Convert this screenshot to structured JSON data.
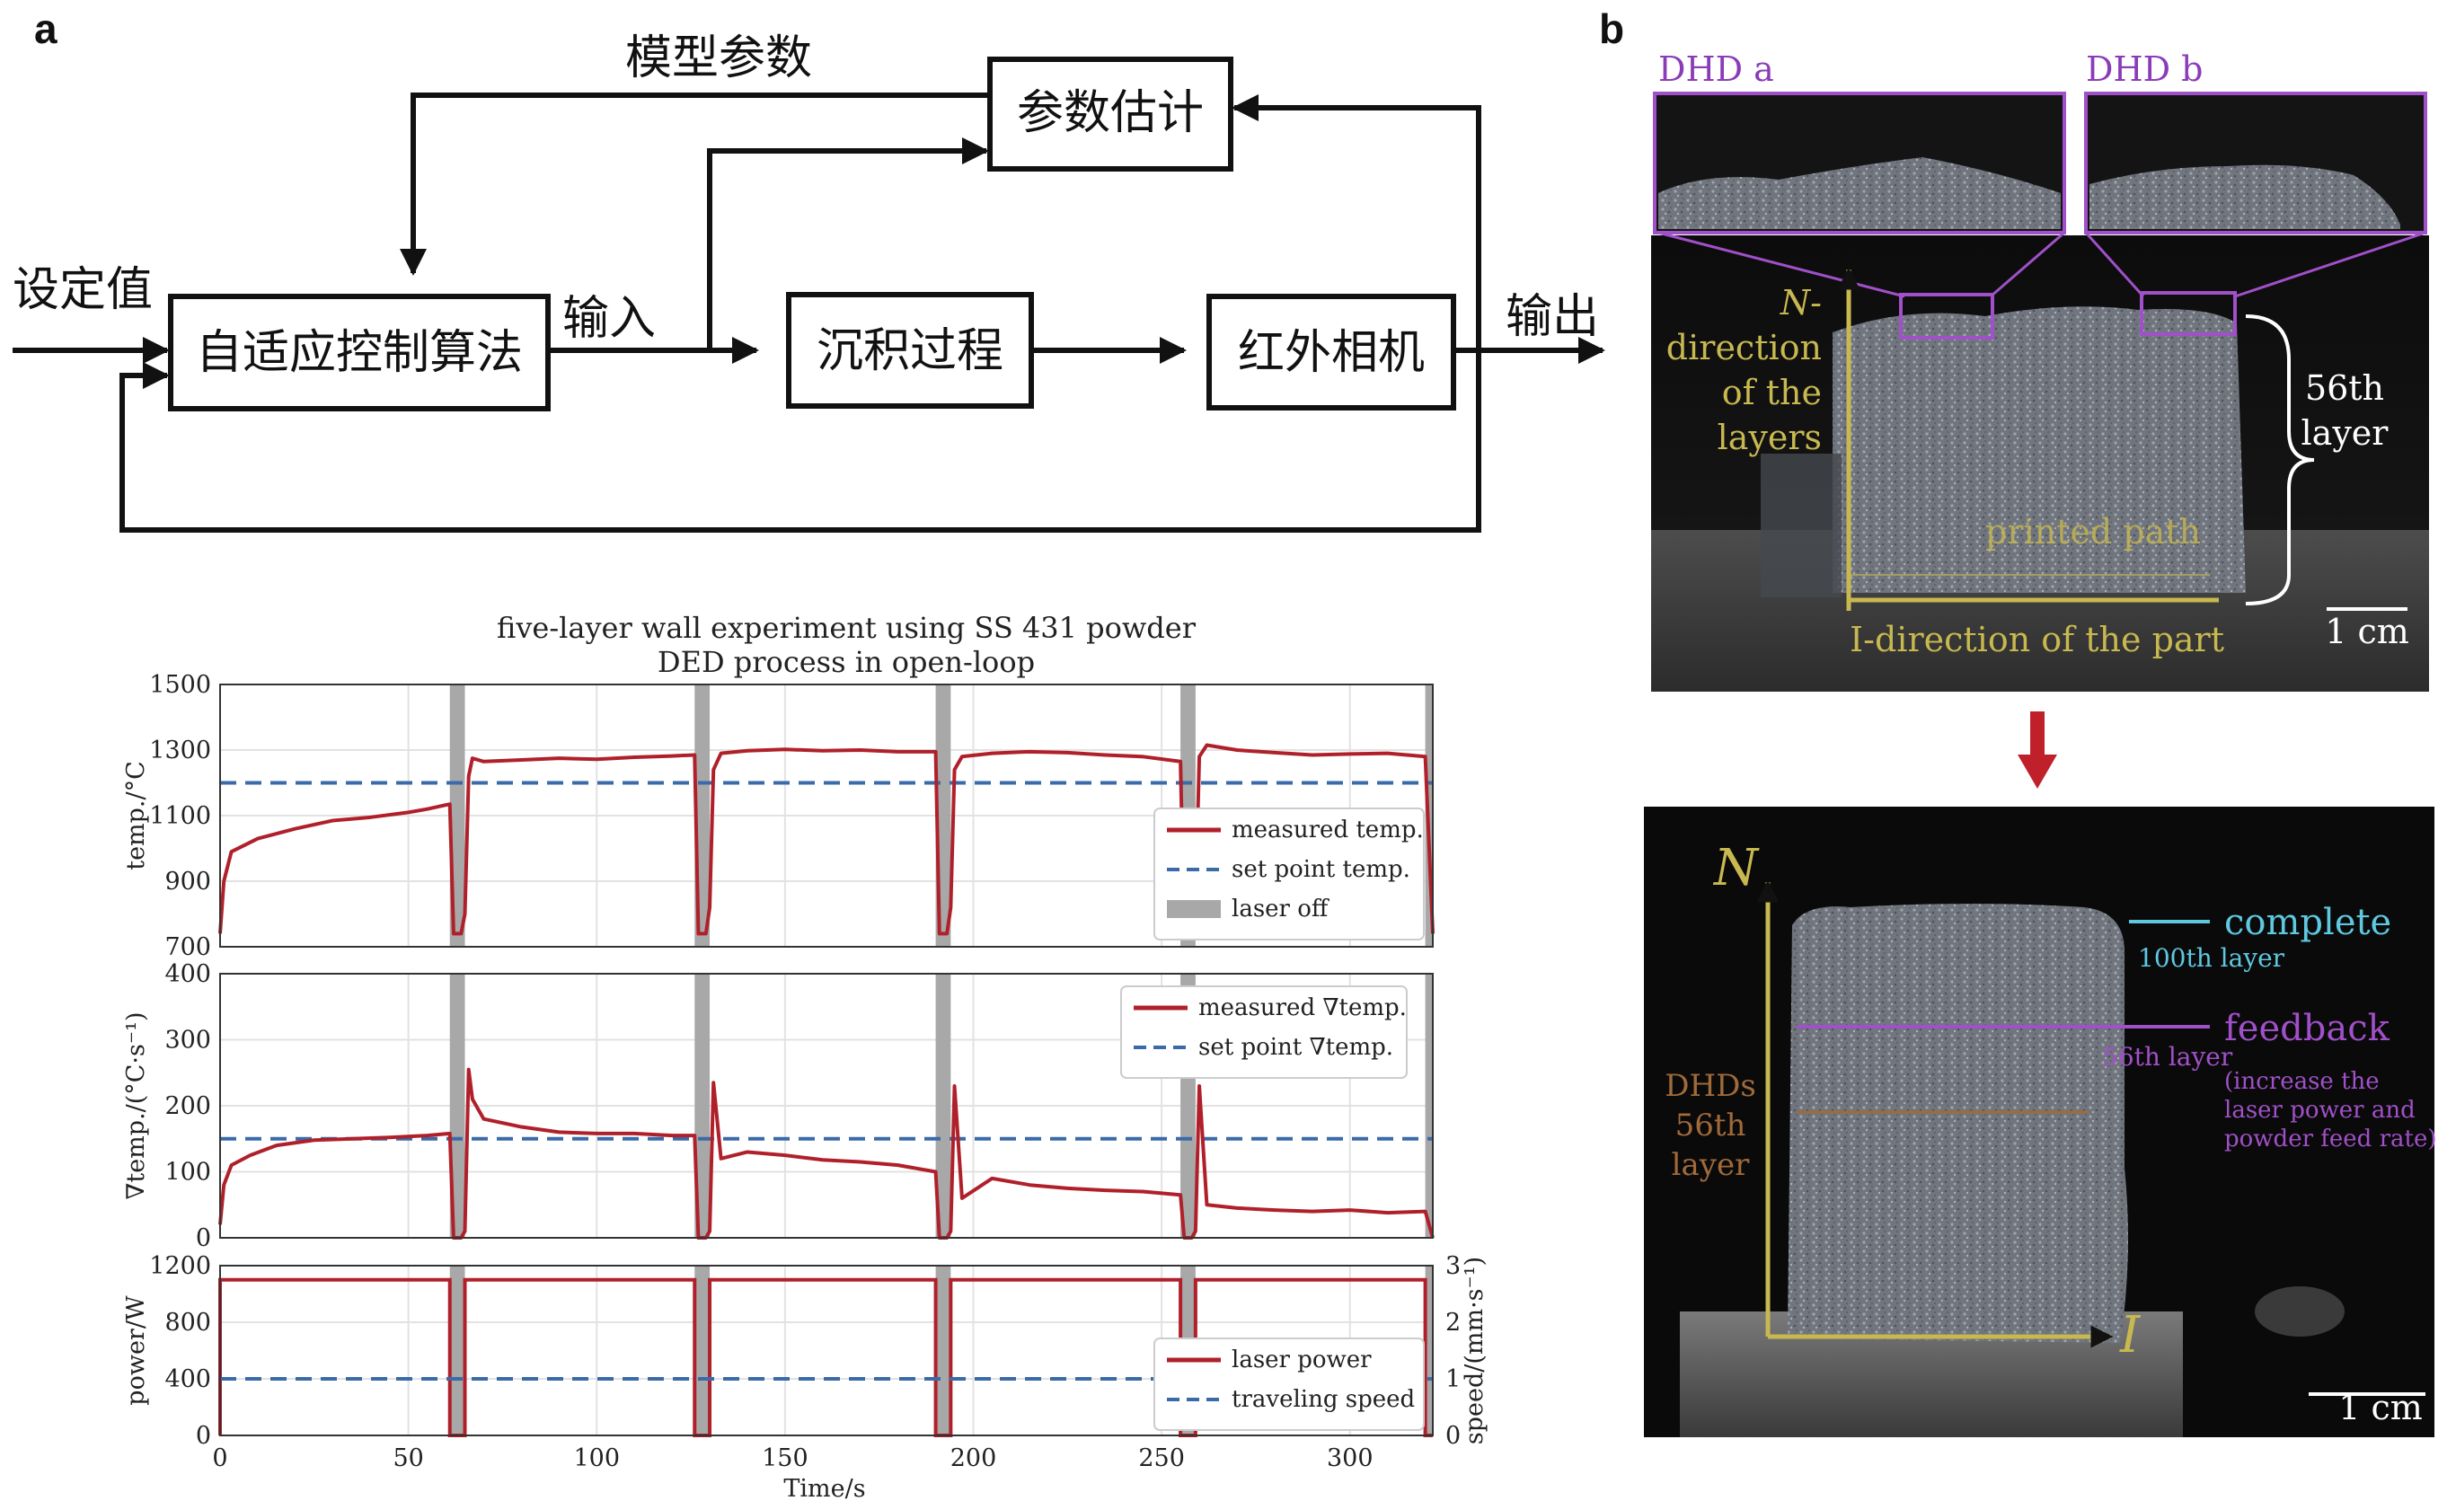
{
  "panel_a": {
    "letter": "a",
    "diagram": {
      "setpoint": "设定值",
      "adaptive_control": "自适应控制算法",
      "input": "输入",
      "deposition": "沉积过程",
      "ir_camera": "红外相机",
      "output": "输出",
      "param_estimation": "参数估计",
      "model_params": "模型参数"
    }
  },
  "panel_b": {
    "letter": "b",
    "photo_top": {
      "dhd_a": "DHD a",
      "dhd_b": "DHD b",
      "n_dir_1": "N-",
      "n_dir_2": "direction",
      "n_dir_3": "of the",
      "n_dir_4": "layers",
      "layer_56_1": "56th",
      "layer_56_2": "layer",
      "printed_path": "printed path",
      "i_dir": "I-direction of the part",
      "scale": "1 cm"
    },
    "photo_bottom": {
      "n_axis": "N",
      "i_axis": "I",
      "complete": "complete",
      "layer_100": "100th layer",
      "feedback": "feedback",
      "layer_56": "56th layer",
      "feedback_note_1": "(increase the",
      "feedback_note_2": "laser power and",
      "feedback_note_3": "powder feed rate)",
      "dhds_1": "DHDs",
      "dhds_2": "56th",
      "dhds_3": "layer",
      "scale": "1 cm"
    },
    "colors": {
      "arrow": "#c0202a",
      "purple": "#a050c8",
      "cyan": "#5ec8e0",
      "yellow": "#c8b850",
      "brown": "#a06a3a"
    }
  },
  "chart_data": {
    "type": "line",
    "title_line1": "five-layer wall experiment using SS 431 powder",
    "title_line2": "DED process in open-loop",
    "xlabel": "Time/s",
    "xlim": [
      0,
      322
    ],
    "x_ticks": [
      "0",
      "50",
      "100",
      "150",
      "200",
      "250",
      "300"
    ],
    "laser_off_intervals": [
      [
        61,
        65
      ],
      [
        126,
        130
      ],
      [
        190,
        194
      ],
      [
        255,
        259
      ],
      [
        320,
        322
      ]
    ],
    "colors": {
      "measured": "#b0202a",
      "setpoint": "#3a6aa8",
      "laser_off": "#a8a8a8"
    },
    "panels": [
      {
        "ylabel": "temp./°C",
        "ylim": [
          700,
          1500
        ],
        "y_ticks": [
          "700",
          "900",
          "1100",
          "1300",
          "1500"
        ],
        "setpoint_value": 1200,
        "legend": [
          "measured temp.",
          "set point temp.",
          "laser off"
        ],
        "measured_x": [
          0,
          1,
          3,
          10,
          20,
          30,
          40,
          50,
          55,
          61,
          62,
          64,
          65,
          66,
          67,
          70,
          80,
          90,
          100,
          110,
          120,
          126,
          127,
          129,
          130,
          131,
          133,
          140,
          150,
          160,
          170,
          180,
          190,
          191,
          193,
          194,
          195,
          197,
          205,
          215,
          225,
          235,
          245,
          255,
          256,
          258,
          259,
          260,
          262,
          270,
          280,
          290,
          300,
          310,
          320,
          322
        ],
        "measured_y": [
          740,
          900,
          990,
          1030,
          1060,
          1085,
          1095,
          1110,
          1120,
          1135,
          740,
          740,
          800,
          1220,
          1275,
          1265,
          1270,
          1275,
          1272,
          1278,
          1282,
          1285,
          740,
          740,
          820,
          1240,
          1290,
          1298,
          1302,
          1298,
          1300,
          1295,
          1295,
          740,
          740,
          820,
          1240,
          1280,
          1290,
          1295,
          1292,
          1285,
          1280,
          1265,
          740,
          740,
          820,
          1280,
          1315,
          1300,
          1292,
          1285,
          1288,
          1290,
          1280,
          740
        ]
      },
      {
        "ylabel": "∇temp./(°C·s⁻¹)",
        "ylim": [
          0,
          400
        ],
        "y_ticks": [
          "0",
          "100",
          "200",
          "300",
          "400"
        ],
        "setpoint_value": 150,
        "legend": [
          "measured ∇temp.",
          "set point ∇temp."
        ],
        "measured_x": [
          0,
          1,
          3,
          8,
          15,
          25,
          35,
          45,
          55,
          61,
          62,
          64,
          65,
          66,
          67,
          70,
          80,
          90,
          100,
          110,
          120,
          126,
          127,
          129,
          130,
          131,
          133,
          140,
          150,
          160,
          170,
          180,
          190,
          191,
          193,
          194,
          195,
          197,
          205,
          215,
          225,
          235,
          245,
          255,
          256,
          258,
          259,
          260,
          262,
          270,
          280,
          290,
          300,
          310,
          320,
          322
        ],
        "measured_y": [
          20,
          80,
          110,
          125,
          140,
          148,
          150,
          152,
          155,
          158,
          0,
          0,
          10,
          255,
          210,
          180,
          168,
          160,
          158,
          158,
          155,
          155,
          0,
          0,
          10,
          235,
          120,
          130,
          125,
          118,
          115,
          110,
          100,
          0,
          0,
          10,
          230,
          60,
          90,
          80,
          75,
          72,
          70,
          65,
          0,
          0,
          10,
          230,
          50,
          45,
          42,
          40,
          42,
          38,
          40,
          0
        ]
      },
      {
        "ylabel": "power/W",
        "ylim": [
          0,
          1200
        ],
        "y_ticks": [
          "0",
          "400",
          "800",
          "1200"
        ],
        "ylabel_right": "speed/(mm·s⁻¹)",
        "ylim_right": [
          0,
          3
        ],
        "y_ticks_right": [
          "0",
          "1",
          "2",
          "3"
        ],
        "laser_power": 1100,
        "traveling_speed": 1,
        "legend": [
          "laser power",
          "traveling speed"
        ]
      }
    ]
  }
}
